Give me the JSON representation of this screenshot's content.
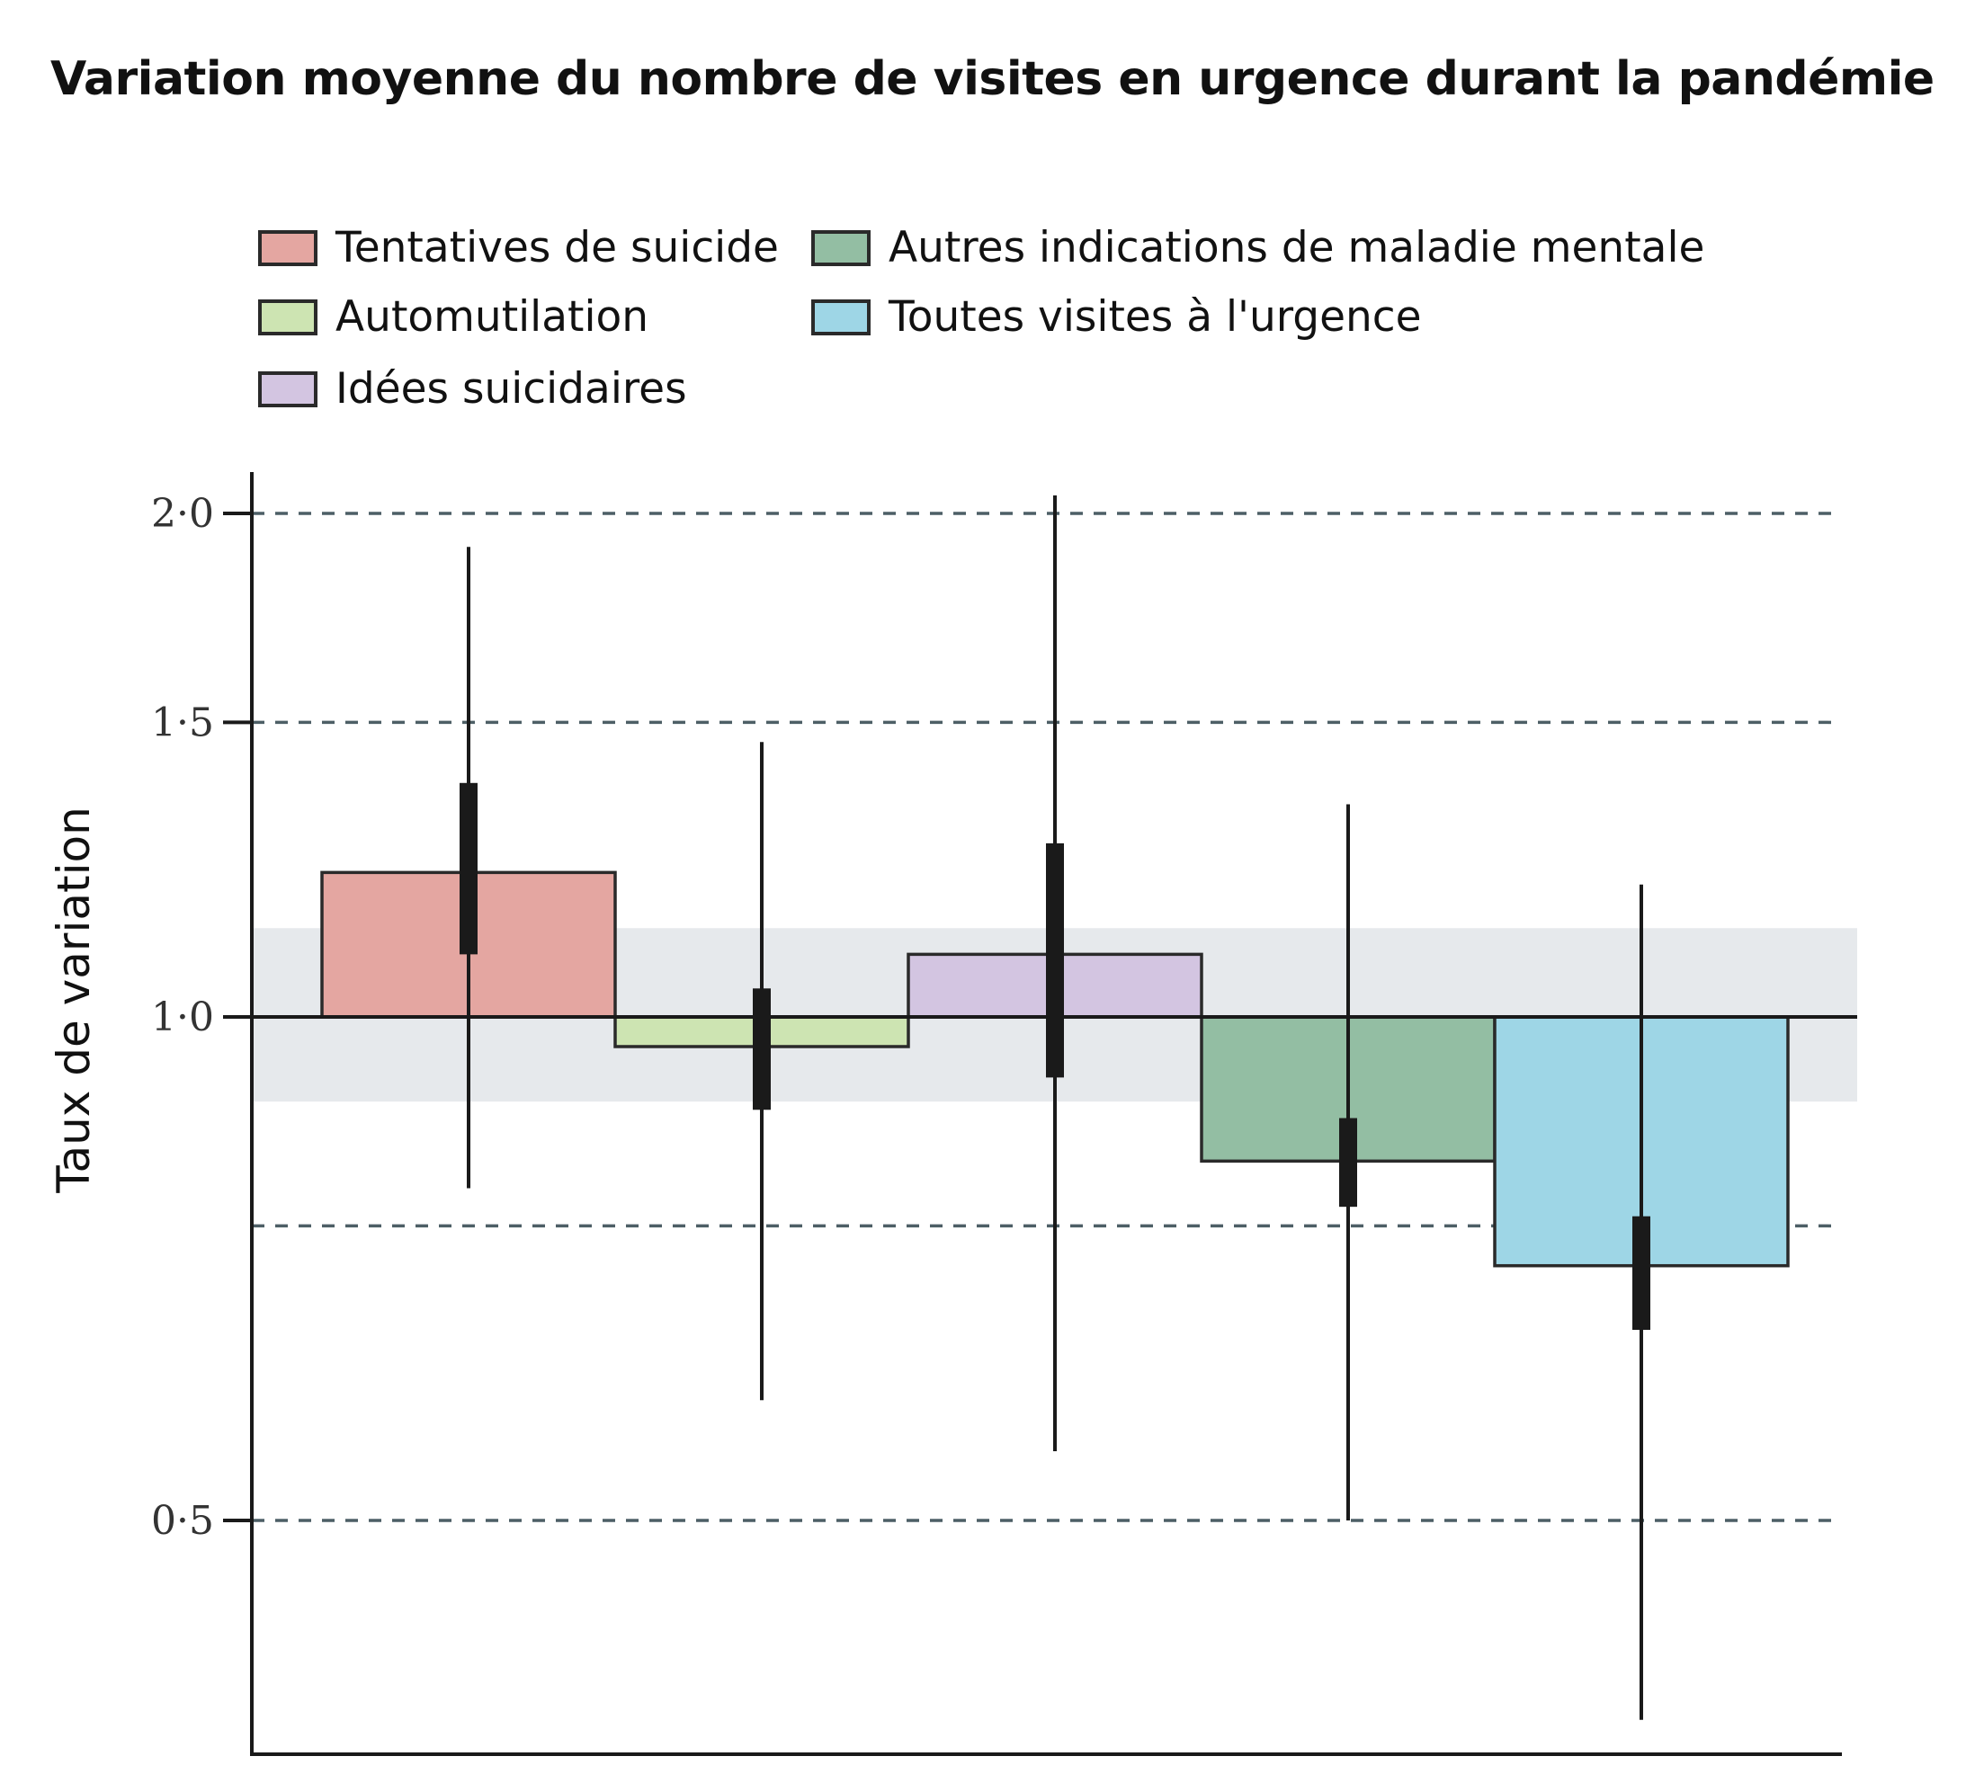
{
  "title": "Variation moyenne du nombre de visites en urgence durant la pandémie",
  "legend": {
    "items": [
      {
        "label": "Tentatives de suicide",
        "color": "#e4a6a1"
      },
      {
        "label": "Automutilation",
        "color": "#cde4b2"
      },
      {
        "label": "Idées suicidaires",
        "color": "#d3c5e1"
      },
      {
        "label": "Autres indications de maladie mentale",
        "color": "#93bea3"
      },
      {
        "label": "Toutes visites à l'urgence",
        "color": "#9ed6e6"
      }
    ]
  },
  "chart_data": {
    "type": "bar",
    "title": "Variation moyenne du nombre de visites en urgence durant la pandémie",
    "ylabel": "Taux de variation",
    "xlabel": "",
    "y_scale": "log",
    "ylim": [
      0.36,
      2.05
    ],
    "yticks": [
      {
        "value": 2.0,
        "label": "2·0"
      },
      {
        "value": 1.5,
        "label": "1·5"
      },
      {
        "value": 1.0,
        "label": "1·0"
      },
      {
        "value": 0.5,
        "label": "0·5"
      }
    ],
    "baseline": 1.0,
    "reference_band": [
      0.89,
      1.13
    ],
    "extra_dashed_gridline": 0.75,
    "grid": "dashed horizontal",
    "legend_position": "top",
    "categories": [
      "Tentatives de suicide",
      "Automutilation",
      "Idées suicidaires",
      "Autres indications de maladie mentale",
      "Toutes visites à l'urgence"
    ],
    "values": [
      1.22,
      0.96,
      1.09,
      0.82,
      0.71
    ],
    "ci_inner": [
      [
        1.09,
        1.38
      ],
      [
        0.88,
        1.04
      ],
      [
        0.92,
        1.27
      ],
      [
        0.77,
        0.87
      ],
      [
        0.65,
        0.76
      ]
    ],
    "ci_outer": [
      [
        0.79,
        1.91
      ],
      [
        0.59,
        1.46
      ],
      [
        0.55,
        2.05
      ],
      [
        0.5,
        1.34
      ],
      [
        0.38,
        1.2
      ]
    ]
  }
}
